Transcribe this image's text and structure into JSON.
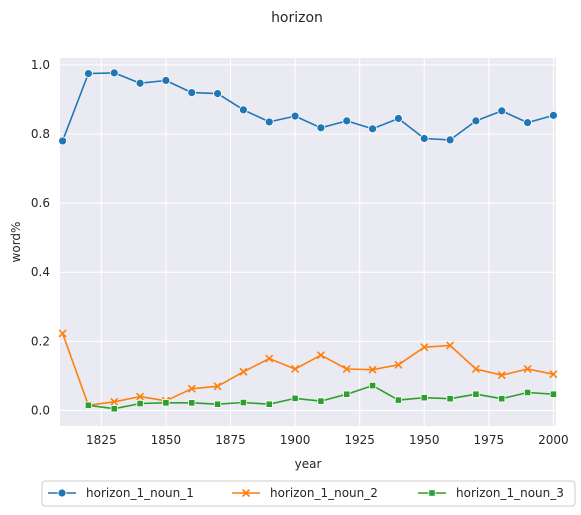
{
  "chart_data": {
    "type": "line",
    "title": "horizon",
    "xlabel": "year",
    "ylabel": "word%",
    "xlim": [
      1809,
      2001
    ],
    "ylim": [
      -0.045,
      1.02
    ],
    "grid": true,
    "legend_position": "bottom",
    "x_ticks": [
      1825,
      1850,
      1875,
      1900,
      1925,
      1950,
      1975,
      2000
    ],
    "x_tick_labels": [
      "1825",
      "1850",
      "1875",
      "1900",
      "1925",
      "1950",
      "1975",
      "2000"
    ],
    "y_ticks": [
      0.0,
      0.2,
      0.4,
      0.6,
      0.8,
      1.0
    ],
    "y_tick_labels": [
      "0.0",
      "0.2",
      "0.4",
      "0.6",
      "0.8",
      "1.0"
    ],
    "series": [
      {
        "name": "horizon_1_noun_1",
        "color": "#1f77b4",
        "marker": "circle",
        "x": [
          1810,
          1820,
          1830,
          1840,
          1850,
          1860,
          1870,
          1880,
          1890,
          1900,
          1910,
          1920,
          1930,
          1940,
          1950,
          1960,
          1970,
          1980,
          1990,
          2000
        ],
        "y": [
          0.78,
          0.975,
          0.977,
          0.947,
          0.955,
          0.92,
          0.917,
          0.87,
          0.835,
          0.852,
          0.818,
          0.838,
          0.815,
          0.845,
          0.787,
          0.783,
          0.838,
          0.867,
          0.833,
          0.854
        ]
      },
      {
        "name": "horizon_1_noun_2",
        "color": "#ff7f0e",
        "marker": "x",
        "x": [
          1810,
          1820,
          1830,
          1840,
          1850,
          1860,
          1870,
          1880,
          1890,
          1900,
          1910,
          1920,
          1930,
          1940,
          1950,
          1960,
          1970,
          1980,
          1990,
          2000
        ],
        "y": [
          0.223,
          0.015,
          0.025,
          0.04,
          0.028,
          0.063,
          0.07,
          0.112,
          0.15,
          0.12,
          0.16,
          0.12,
          0.118,
          0.132,
          0.183,
          0.188,
          0.12,
          0.102,
          0.12,
          0.105
        ]
      },
      {
        "name": "horizon_1_noun_3",
        "color": "#2ca02c",
        "marker": "square",
        "x": [
          1820,
          1830,
          1840,
          1850,
          1860,
          1870,
          1880,
          1890,
          1900,
          1910,
          1920,
          1930,
          1940,
          1950,
          1960,
          1970,
          1980,
          1990,
          2000
        ],
        "y": [
          0.015,
          0.005,
          0.02,
          0.022,
          0.022,
          0.018,
          0.023,
          0.018,
          0.035,
          0.027,
          0.047,
          0.072,
          0.03,
          0.037,
          0.034,
          0.047,
          0.034,
          0.052,
          0.047
        ]
      }
    ]
  }
}
